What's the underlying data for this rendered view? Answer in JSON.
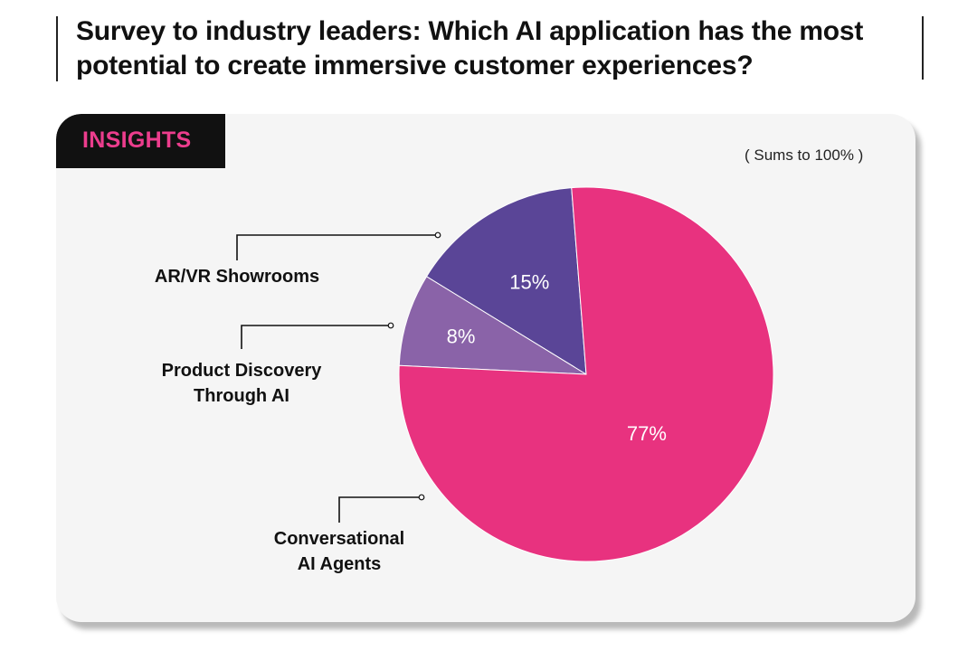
{
  "header": {
    "title": "Survey to industry leaders: Which AI application has the most potential to create immersive customer experiences?"
  },
  "card": {
    "badge": "INSIGHTS",
    "note": "( Sums to 100% )"
  },
  "chart_data": {
    "type": "pie",
    "series": [
      {
        "values": [
          15,
          8,
          77
        ],
        "categories": [
          "AR/VR Showrooms",
          "Product Discovery Through AI",
          "Conversational AI Agents"
        ]
      }
    ],
    "slices": [
      {
        "label_lines": [
          "AR/VR Showrooms"
        ],
        "value": 15,
        "value_label": "15%",
        "color": "#5a4597"
      },
      {
        "label_lines": [
          "Product Discovery",
          "Through AI"
        ],
        "value": 8,
        "value_label": "8%",
        "color": "#8a63a8"
      },
      {
        "label_lines": [
          "Conversational",
          "AI Agents"
        ],
        "value": 77,
        "value_label": "77%",
        "color": "#e8327f"
      }
    ],
    "colors": {
      "badge_text": "#ec3d8d",
      "badge_bg": "#111111"
    }
  }
}
